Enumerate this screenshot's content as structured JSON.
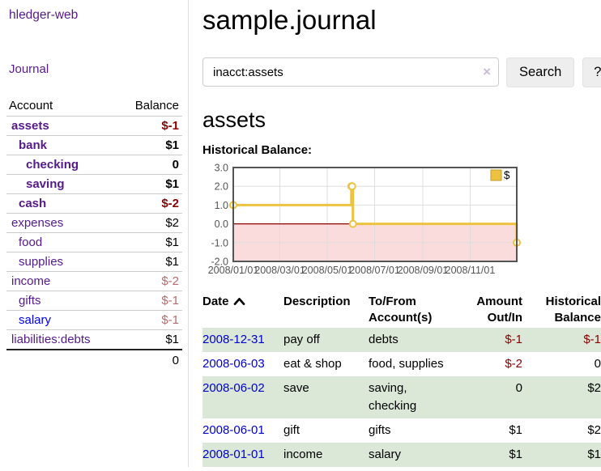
{
  "sidebar": {
    "brand": "hledger-web",
    "nav_journal": "Journal",
    "accounts_table": {
      "header_account": "Account",
      "header_balance": "Balance",
      "rows": [
        {
          "name": "assets",
          "level": 1,
          "in_query": true,
          "balance": "$-1",
          "balance_class": "neg strong"
        },
        {
          "name": "bank",
          "level": 2,
          "in_query": true,
          "balance": "$1",
          "balance_class": "strong"
        },
        {
          "name": "checking",
          "level": 3,
          "in_query": true,
          "balance": "0",
          "balance_class": "strong"
        },
        {
          "name": "saving",
          "level": 3,
          "in_query": true,
          "balance": "$1",
          "balance_class": "strong"
        },
        {
          "name": "cash",
          "level": 2,
          "in_query": true,
          "balance": "$-2",
          "balance_class": "neg strong"
        },
        {
          "name": "expenses",
          "level": 1,
          "in_query": false,
          "balance": "$2",
          "balance_class": ""
        },
        {
          "name": "food",
          "level": 2,
          "in_query": false,
          "balance": "$1",
          "balance_class": ""
        },
        {
          "name": "supplies",
          "level": 2,
          "in_query": false,
          "balance": "$1",
          "balance_class": ""
        },
        {
          "name": "income",
          "level": 1,
          "in_query": false,
          "balance": "$-2",
          "balance_class": "neg-muted"
        },
        {
          "name": "gifts",
          "level": 2,
          "in_query": false,
          "balance": "$-1",
          "balance_class": "neg-muted"
        },
        {
          "name": "salary",
          "level": 2,
          "in_query": false,
          "balance": "$-1",
          "balance_class": "neg-muted",
          "link_state": "unvisited"
        },
        {
          "name": "liabilities:debts",
          "level": 1,
          "in_query": false,
          "balance": "$1",
          "balance_class": ""
        }
      ],
      "total": "0"
    }
  },
  "main": {
    "title": "sample.journal",
    "search": {
      "value": "inacct:assets",
      "clear_icon": "×",
      "button": "Search",
      "help": "?"
    },
    "account_heading": "assets"
  },
  "chart_data": {
    "type": "line",
    "step": true,
    "title": "Historical Balance:",
    "series": [
      {
        "name": "$",
        "color": "#edc240",
        "marker": "circle",
        "points": [
          [
            "2008-01-01",
            1
          ],
          [
            "2008-06-01",
            2
          ],
          [
            "2008-06-02",
            2
          ],
          [
            "2008-06-03",
            0
          ],
          [
            "2008-12-31",
            -1
          ]
        ]
      }
    ],
    "xlim": [
      "2008-01-01",
      "2008-12-31"
    ],
    "ylim": [
      -2,
      3
    ],
    "x_ticks": [
      {
        "date": "2008-01-01",
        "label": "2008/01/01"
      },
      {
        "date": "2008-03-01",
        "label": "2008/03/01"
      },
      {
        "date": "2008-05-01",
        "label": "2008/05/01"
      },
      {
        "date": "2008-07-01",
        "label": "2008/07/01"
      },
      {
        "date": "2008-09-01",
        "label": "2008/09/01"
      },
      {
        "date": "2008-11-01",
        "label": "2008/11/01"
      }
    ],
    "y_ticks": [
      {
        "value": 3,
        "label": "3.0"
      },
      {
        "value": 2,
        "label": "2.0"
      },
      {
        "value": 1,
        "label": "1.0"
      },
      {
        "value": 0,
        "label": "0.0"
      },
      {
        "value": -1,
        "label": "-1.0"
      },
      {
        "value": -2,
        "label": "-2.0"
      }
    ],
    "legend": {
      "position": "top-right",
      "label": "$"
    },
    "grid": true,
    "colors": {
      "negative_region": "#fbdcdc",
      "zero_line": "#8b0000",
      "border": "#545454",
      "gridline": "#dddddd",
      "marker_fill": "#ffffff"
    }
  },
  "register_table": {
    "headers": {
      "date": "Date",
      "description": "Description",
      "accounts": "To/From Account(s)",
      "amount": "Amount Out/In",
      "historical": "Historical Balance"
    },
    "sort": {
      "column": "date",
      "direction": "ascending"
    },
    "rows": [
      {
        "date": "2008-12-31",
        "description": "pay off",
        "accounts": "debts",
        "amount": "$-1",
        "amount_neg": true,
        "historical": "$-1",
        "historical_neg": true,
        "shaded": true
      },
      {
        "date": "2008-06-03",
        "description": "eat & shop",
        "accounts": "food, supplies",
        "amount": "$-2",
        "amount_neg": true,
        "historical": "0",
        "historical_neg": false,
        "shaded": false
      },
      {
        "date": "2008-06-02",
        "description": "save",
        "accounts": "saving, checking",
        "amount": "0",
        "amount_neg": false,
        "historical": "$2",
        "historical_neg": false,
        "shaded": true
      },
      {
        "date": "2008-06-01",
        "description": "gift",
        "accounts": "gifts",
        "amount": "$1",
        "amount_neg": false,
        "historical": "$2",
        "historical_neg": false,
        "shaded": false
      },
      {
        "date": "2008-01-01",
        "description": "income",
        "accounts": "salary",
        "amount": "$1",
        "amount_neg": false,
        "historical": "$1",
        "historical_neg": false,
        "shaded": true
      }
    ]
  },
  "colors": {
    "link_visited_purple": "#551a8b",
    "link_blue": "#0000ee",
    "date_link_blue": "#0000cc",
    "negative_strong_red": "#8b0000",
    "negative_muted_red": "#b36b6b",
    "row_stripe_green": "#dbe8d8",
    "series_gold": "#edc240"
  }
}
